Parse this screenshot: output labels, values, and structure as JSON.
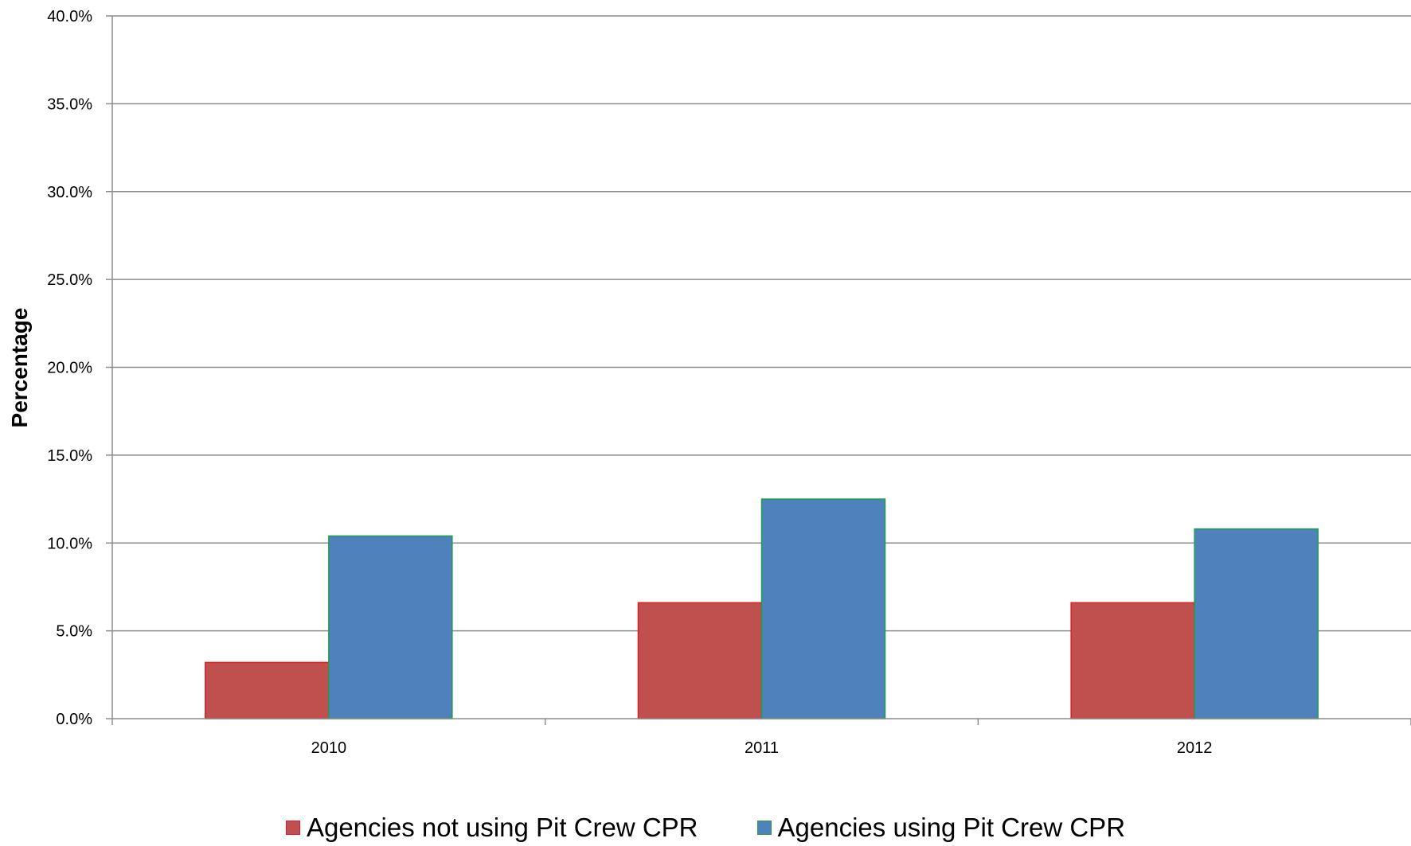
{
  "chart_data": {
    "type": "bar",
    "categories": [
      "2010",
      "2011",
      "2012"
    ],
    "series": [
      {
        "name": "Agencies not using Pit Crew CPR",
        "values": [
          3.2,
          6.6,
          6.6
        ],
        "color": "#c0504d",
        "stroke": "#e01b24"
      },
      {
        "name": "Agencies using Pit Crew CPR",
        "values": [
          10.4,
          12.5,
          10.8
        ],
        "color": "#4f81bd",
        "stroke": "#1f9e4a"
      }
    ],
    "title": "",
    "xlabel": "",
    "ylabel": "Percentage",
    "ylim": [
      0,
      40
    ],
    "yticks": [
      "0.0%",
      "5.0%",
      "10.0%",
      "15.0%",
      "20.0%",
      "25.0%",
      "30.0%",
      "35.0%",
      "40.0%"
    ],
    "grid": true,
    "legend_position": "bottom"
  }
}
